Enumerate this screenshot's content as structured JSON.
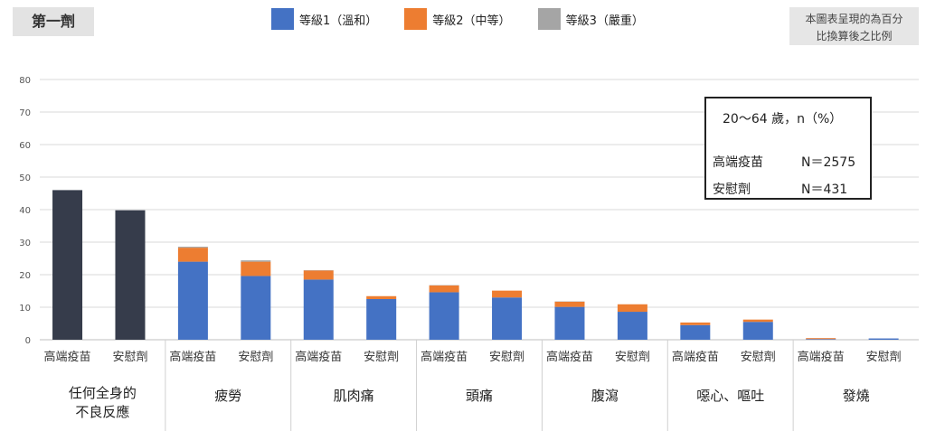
{
  "header": {
    "dose_label": "第一劑",
    "legend": [
      {
        "label": "等級1（溫和）",
        "color": "#4472c4"
      },
      {
        "label": "等級2（中等）",
        "color": "#ed7d31"
      },
      {
        "label": "等級3（嚴重）",
        "color": "#a5a5a5"
      }
    ],
    "note_lines": [
      "本圖表呈現的為百分",
      "比換算後之比例"
    ]
  },
  "info_box": {
    "heading": "20～64 歲，n（%）",
    "rows": [
      {
        "label": "高端疫苗",
        "value": "N＝2575"
      },
      {
        "label": "安慰劑",
        "value": "N＝431"
      }
    ]
  },
  "chart_data": {
    "type": "bar",
    "stacked": true,
    "ylim": [
      0,
      80
    ],
    "yticks": [
      0,
      10,
      20,
      30,
      40,
      50,
      60,
      70,
      80
    ],
    "grid": true,
    "groups": [
      {
        "name": "任何全身的\n不良反應",
        "bars": [
          {
            "label": "高端疫苗",
            "total": 46
          },
          {
            "label": "安慰劑",
            "total": 39.8
          }
        ]
      },
      {
        "name": "疲勞",
        "bars": [
          {
            "label": "高端疫苗",
            "grade1": 24,
            "grade2": 4.3,
            "grade3": 0.3
          },
          {
            "label": "安慰劑",
            "grade1": 19.6,
            "grade2": 4.4,
            "grade3": 0.4
          }
        ]
      },
      {
        "name": "肌肉痛",
        "bars": [
          {
            "label": "高端疫苗",
            "grade1": 18.5,
            "grade2": 2.8,
            "grade3": 0.1
          },
          {
            "label": "安慰劑",
            "grade1": 12.5,
            "grade2": 0.9,
            "grade3": 0
          }
        ]
      },
      {
        "name": "頭痛",
        "bars": [
          {
            "label": "高端疫苗",
            "grade1": 14.6,
            "grade2": 2.1,
            "grade3": 0.1
          },
          {
            "label": "安慰劑",
            "grade1": 13,
            "grade2": 2.1,
            "grade3": 0
          }
        ]
      },
      {
        "name": "腹瀉",
        "bars": [
          {
            "label": "高端疫苗",
            "grade1": 10.1,
            "grade2": 1.6,
            "grade3": 0.1
          },
          {
            "label": "安慰劑",
            "grade1": 8.6,
            "grade2": 2.3,
            "grade3": 0
          }
        ]
      },
      {
        "name": "噁心、嘔吐",
        "bars": [
          {
            "label": "高端疫苗",
            "grade1": 4.5,
            "grade2": 0.8,
            "grade3": 0
          },
          {
            "label": "安慰劑",
            "grade1": 5.5,
            "grade2": 0.7,
            "grade3": 0
          }
        ]
      },
      {
        "name": "發燒",
        "bars": [
          {
            "label": "高端疫苗",
            "grade1": 0.2,
            "grade2": 0.3,
            "grade3": 0
          },
          {
            "label": "安慰劑",
            "grade1": 0.4,
            "grade2": 0,
            "grade3": 0
          }
        ]
      }
    ],
    "colors": {
      "total": "#363c4b",
      "grade1": "#4472c4",
      "grade2": "#ed7d31",
      "grade3": "#a5a5a5"
    }
  }
}
